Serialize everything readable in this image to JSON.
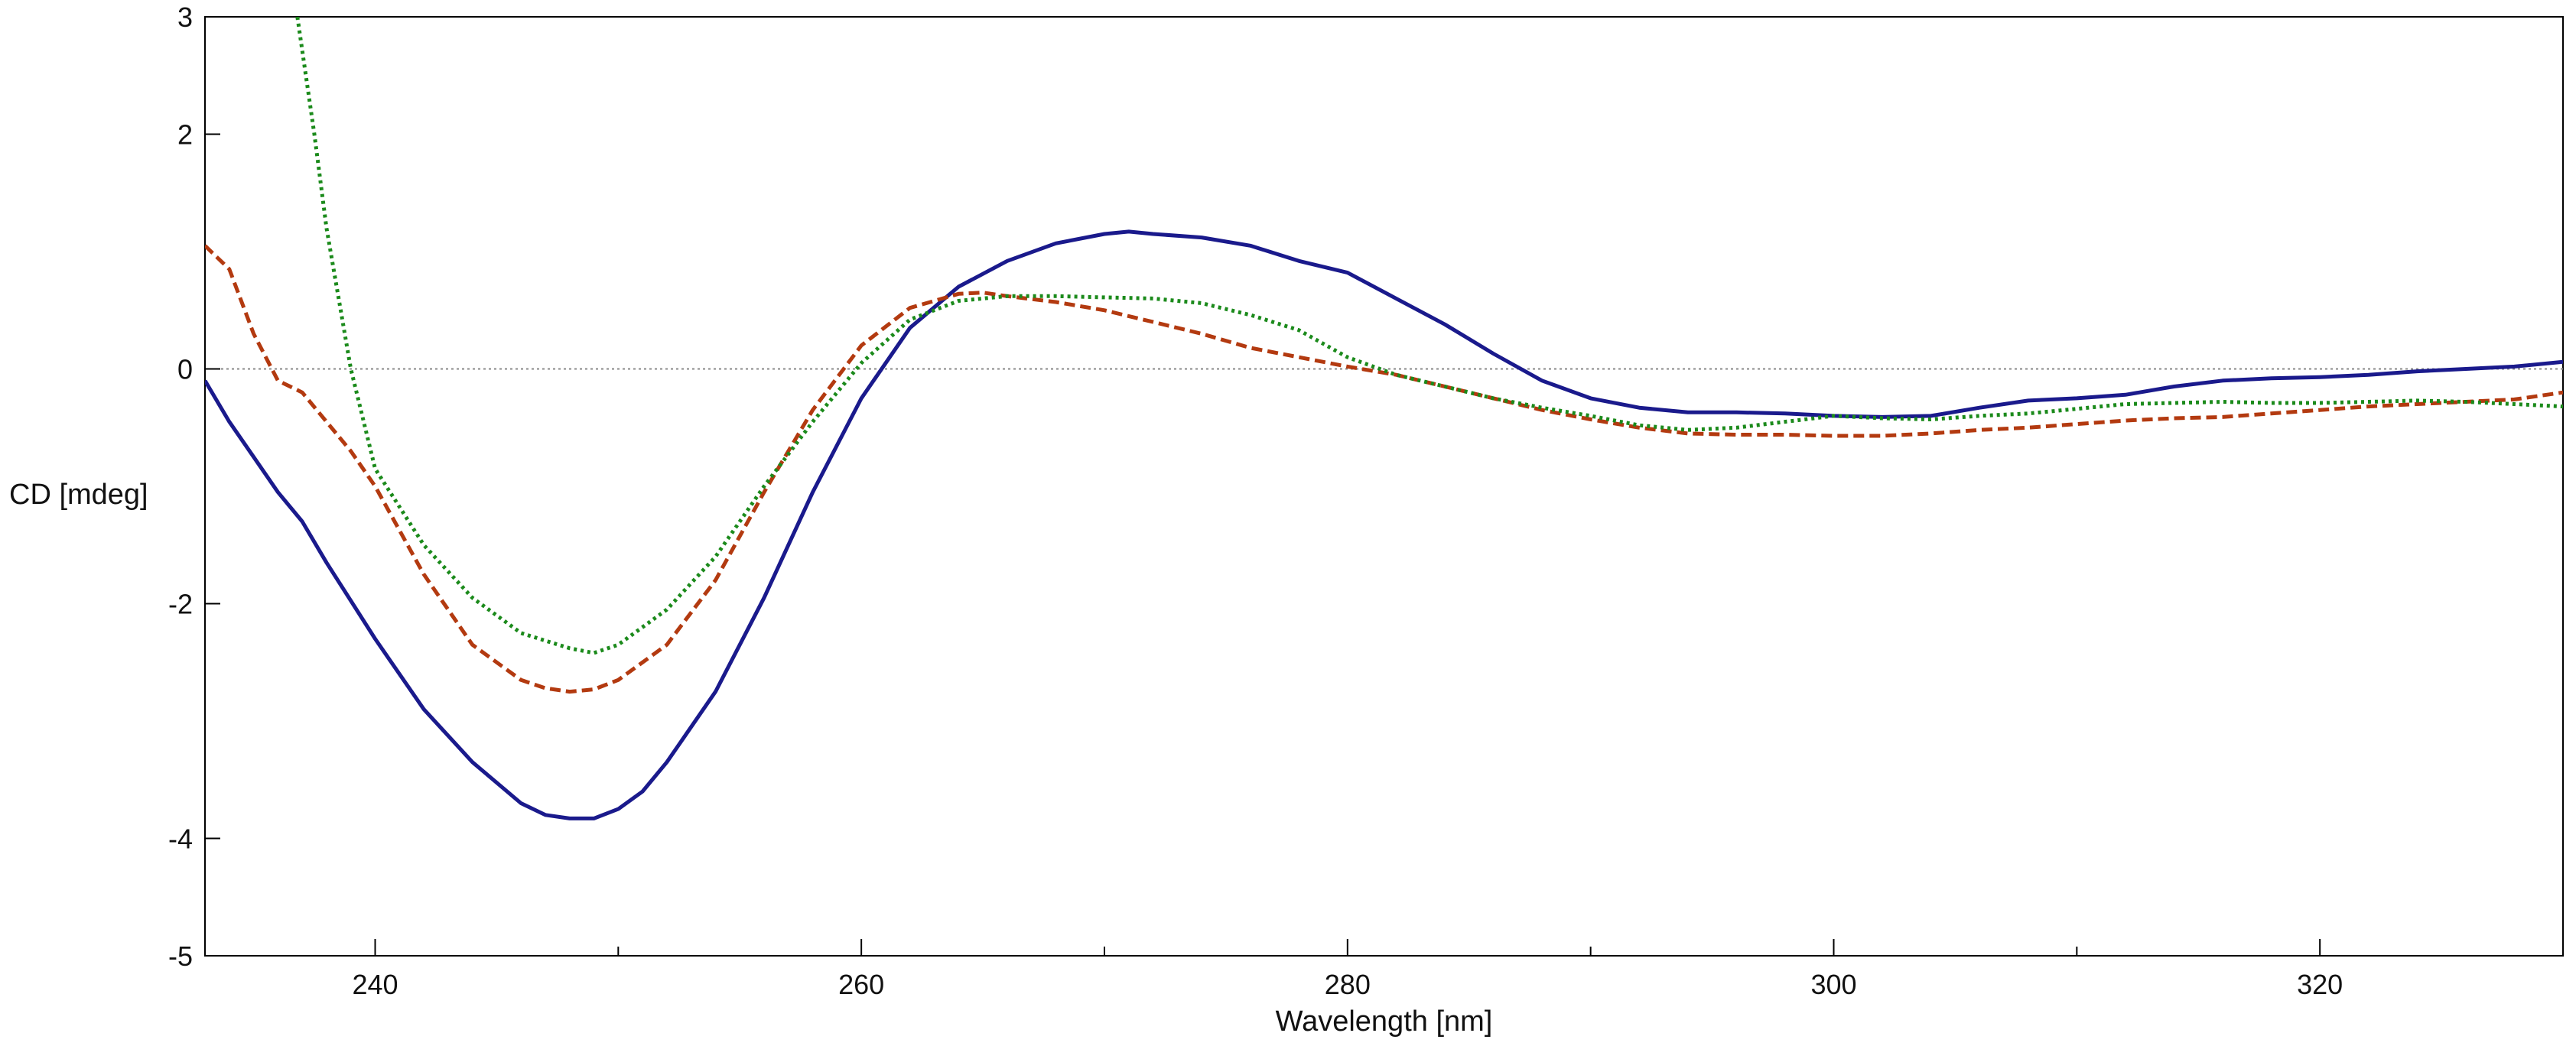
{
  "chart_data": {
    "type": "line",
    "title": "",
    "xlabel": "Wavelength [nm]",
    "ylabel": "CD [mdeg]",
    "xlim": [
      233,
      330
    ],
    "ylim": [
      -5,
      3
    ],
    "x_major_ticks": [
      240,
      260,
      280,
      300,
      320
    ],
    "x_minor_ticks": [
      250,
      270,
      290,
      310
    ],
    "y_ticks": [
      3,
      2,
      0,
      -2,
      -4,
      -5
    ],
    "zero_line": true,
    "legend": "none",
    "series": [
      {
        "name": "series-1",
        "color": "#1a1a8c",
        "style": "solid",
        "x": [
          233,
          234,
          235,
          236,
          237,
          238,
          240,
          242,
          244,
          246,
          247,
          248,
          249,
          250,
          251,
          252,
          254,
          256,
          258,
          260,
          262,
          264,
          266,
          268,
          270,
          271,
          272,
          274,
          276,
          278,
          280,
          282,
          284,
          286,
          288,
          290,
          292,
          294,
          296,
          298,
          300,
          302,
          304,
          306,
          308,
          310,
          312,
          314,
          316,
          318,
          320,
          322,
          324,
          326,
          328,
          330
        ],
        "y": [
          -0.1,
          -0.45,
          -0.75,
          -1.05,
          -1.3,
          -1.65,
          -2.3,
          -2.9,
          -3.35,
          -3.7,
          -3.8,
          -3.83,
          -3.83,
          -3.75,
          -3.6,
          -3.35,
          -2.75,
          -1.95,
          -1.05,
          -0.25,
          0.35,
          0.7,
          0.92,
          1.07,
          1.15,
          1.17,
          1.15,
          1.12,
          1.05,
          0.92,
          0.82,
          0.6,
          0.38,
          0.13,
          -0.1,
          -0.25,
          -0.33,
          -0.37,
          -0.37,
          -0.38,
          -0.4,
          -0.41,
          -0.4,
          -0.33,
          -0.27,
          -0.25,
          -0.22,
          -0.15,
          -0.1,
          -0.08,
          -0.07,
          -0.05,
          -0.02,
          0.0,
          0.02,
          0.06
        ]
      },
      {
        "name": "series-2",
        "color": "#b33a10",
        "style": "dashed",
        "x": [
          233,
          234,
          235,
          236,
          237,
          238,
          239,
          240,
          242,
          244,
          246,
          247,
          248,
          249,
          250,
          252,
          254,
          256,
          258,
          260,
          262,
          264,
          265,
          266,
          268,
          270,
          272,
          274,
          276,
          278,
          280,
          282,
          284,
          286,
          288,
          290,
          292,
          294,
          296,
          298,
          300,
          302,
          304,
          306,
          308,
          310,
          312,
          314,
          316,
          318,
          320,
          322,
          324,
          326,
          328,
          330
        ],
        "y": [
          1.05,
          0.85,
          0.3,
          -0.1,
          -0.2,
          -0.45,
          -0.7,
          -1.0,
          -1.75,
          -2.35,
          -2.65,
          -2.72,
          -2.75,
          -2.73,
          -2.65,
          -2.35,
          -1.8,
          -1.05,
          -0.35,
          0.2,
          0.52,
          0.64,
          0.65,
          0.62,
          0.57,
          0.5,
          0.4,
          0.3,
          0.18,
          0.1,
          0.02,
          -0.05,
          -0.15,
          -0.25,
          -0.35,
          -0.43,
          -0.5,
          -0.55,
          -0.56,
          -0.56,
          -0.57,
          -0.57,
          -0.55,
          -0.52,
          -0.5,
          -0.47,
          -0.44,
          -0.42,
          -0.41,
          -0.38,
          -0.35,
          -0.32,
          -0.3,
          -0.28,
          -0.26,
          -0.2
        ]
      },
      {
        "name": "series-3",
        "color": "#1b8a1b",
        "style": "dotted",
        "x": [
          236.8,
          237.5,
          238,
          239,
          240,
          242,
          244,
          246,
          248,
          249,
          250,
          252,
          254,
          256,
          258,
          260,
          262,
          264,
          266,
          268,
          270,
          272,
          274,
          276,
          278,
          280,
          282,
          284,
          286,
          288,
          290,
          292,
          294,
          296,
          298,
          300,
          302,
          304,
          306,
          308,
          310,
          312,
          314,
          316,
          318,
          320,
          322,
          324,
          326,
          328,
          330
        ],
        "y": [
          3.0,
          2.0,
          1.2,
          0.0,
          -0.85,
          -1.5,
          -1.95,
          -2.25,
          -2.38,
          -2.42,
          -2.35,
          -2.05,
          -1.6,
          -1.0,
          -0.45,
          0.05,
          0.42,
          0.58,
          0.62,
          0.62,
          0.61,
          0.6,
          0.56,
          0.46,
          0.33,
          0.1,
          -0.05,
          -0.15,
          -0.25,
          -0.33,
          -0.4,
          -0.48,
          -0.52,
          -0.5,
          -0.45,
          -0.4,
          -0.42,
          -0.43,
          -0.4,
          -0.38,
          -0.34,
          -0.3,
          -0.29,
          -0.28,
          -0.29,
          -0.29,
          -0.28,
          -0.27,
          -0.28,
          -0.3,
          -0.32
        ]
      }
    ]
  }
}
